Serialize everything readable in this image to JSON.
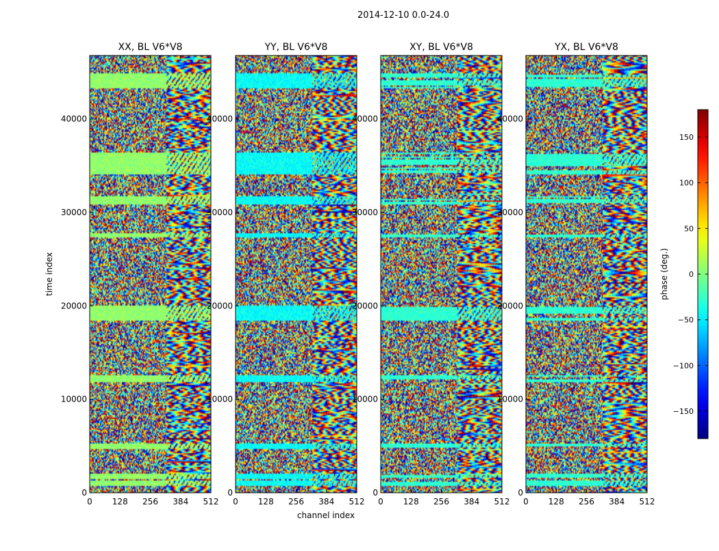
{
  "chart_data": {
    "type": "heatmap",
    "suptitle": "2014-12-10 0.0-24.0",
    "xlabel": "channel index",
    "ylabel": "time index",
    "xlim": [
      0,
      512
    ],
    "ylim": [
      0,
      46800
    ],
    "xticks": [
      0,
      128,
      256,
      384,
      512
    ],
    "yticks": [
      0,
      10000,
      20000,
      30000,
      40000
    ],
    "panels": [
      {
        "title": "XX, BL V6*V8"
      },
      {
        "title": "YY, BL V6*V8"
      },
      {
        "title": "XY, BL V6*V8"
      },
      {
        "title": "YX, BL V6*V8"
      }
    ],
    "colorbar": {
      "label": "phase (deg.)",
      "range": [
        -180,
        180
      ],
      "ticks": [
        -150,
        -100,
        -50,
        0,
        50,
        100,
        150
      ],
      "tick_labels": [
        "−150",
        "−100",
        "−50",
        "0",
        "50",
        "100",
        "150"
      ],
      "colormap": "jet"
    },
    "horizontal_flag_bands": [
      [
        800,
        1400
      ],
      [
        1600,
        2100
      ],
      [
        4800,
        5300
      ],
      [
        11900,
        12600
      ],
      [
        18500,
        20100
      ],
      [
        27400,
        27900
      ],
      [
        31000,
        31800
      ],
      [
        34200,
        36500
      ],
      [
        43400,
        44900
      ]
    ],
    "texture_transition_channel": 320
  }
}
